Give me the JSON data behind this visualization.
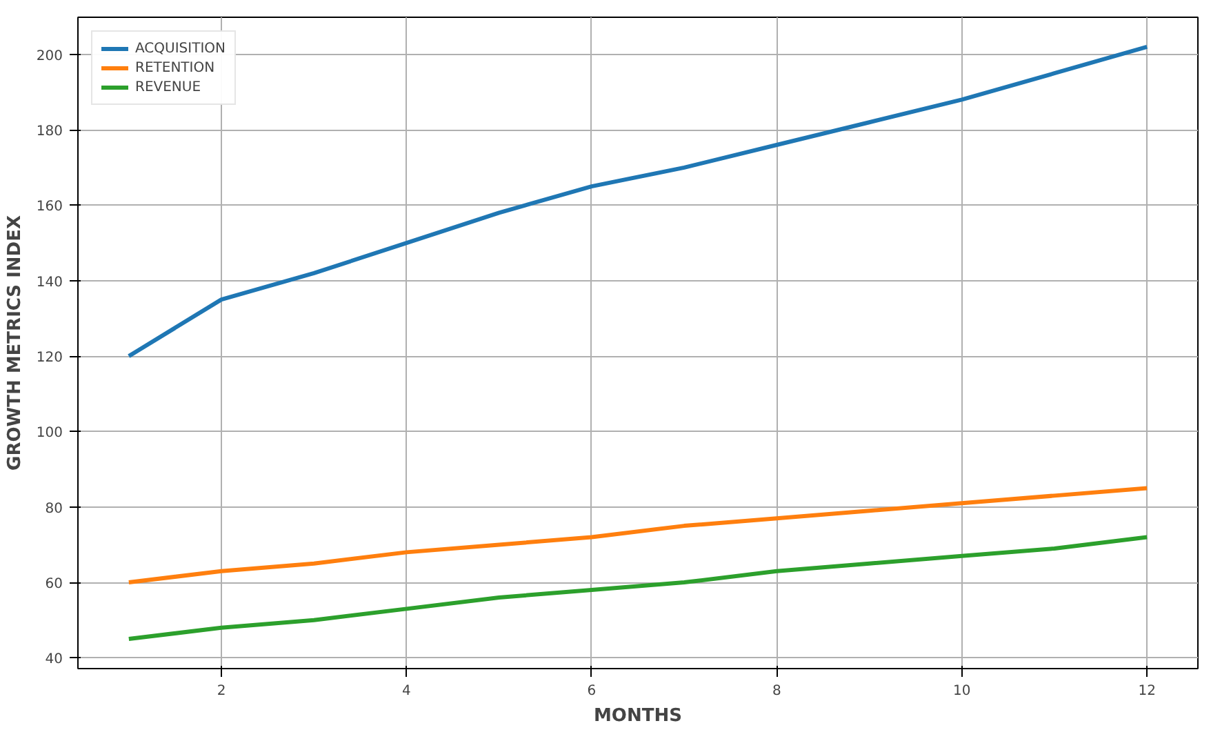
{
  "chart_data": {
    "type": "line",
    "xlabel": "MONTHS",
    "ylabel": "GROWTH METRICS INDEX",
    "x": [
      1,
      2,
      3,
      4,
      5,
      6,
      7,
      8,
      9,
      10,
      11,
      12
    ],
    "series": [
      {
        "name": "ACQUISITION",
        "color": "#1f77b4",
        "values": [
          120,
          135,
          142,
          150,
          158,
          165,
          170,
          176,
          182,
          188,
          195,
          202
        ]
      },
      {
        "name": "RETENTION",
        "color": "#ff7f0e",
        "values": [
          60,
          63,
          65,
          68,
          70,
          72,
          75,
          77,
          79,
          81,
          83,
          85
        ]
      },
      {
        "name": "REVENUE",
        "color": "#2ca02c",
        "values": [
          45,
          48,
          50,
          53,
          56,
          58,
          60,
          63,
          65,
          67,
          69,
          72
        ]
      }
    ],
    "xlim": [
      0.45,
      12.55
    ],
    "ylim": [
      37.15,
      209.85
    ],
    "xticks": [
      2,
      4,
      6,
      8,
      10,
      12
    ],
    "yticks": [
      40,
      60,
      80,
      100,
      120,
      140,
      160,
      180,
      200
    ],
    "grid": true,
    "legend": "top left",
    "line_style": "solid"
  }
}
